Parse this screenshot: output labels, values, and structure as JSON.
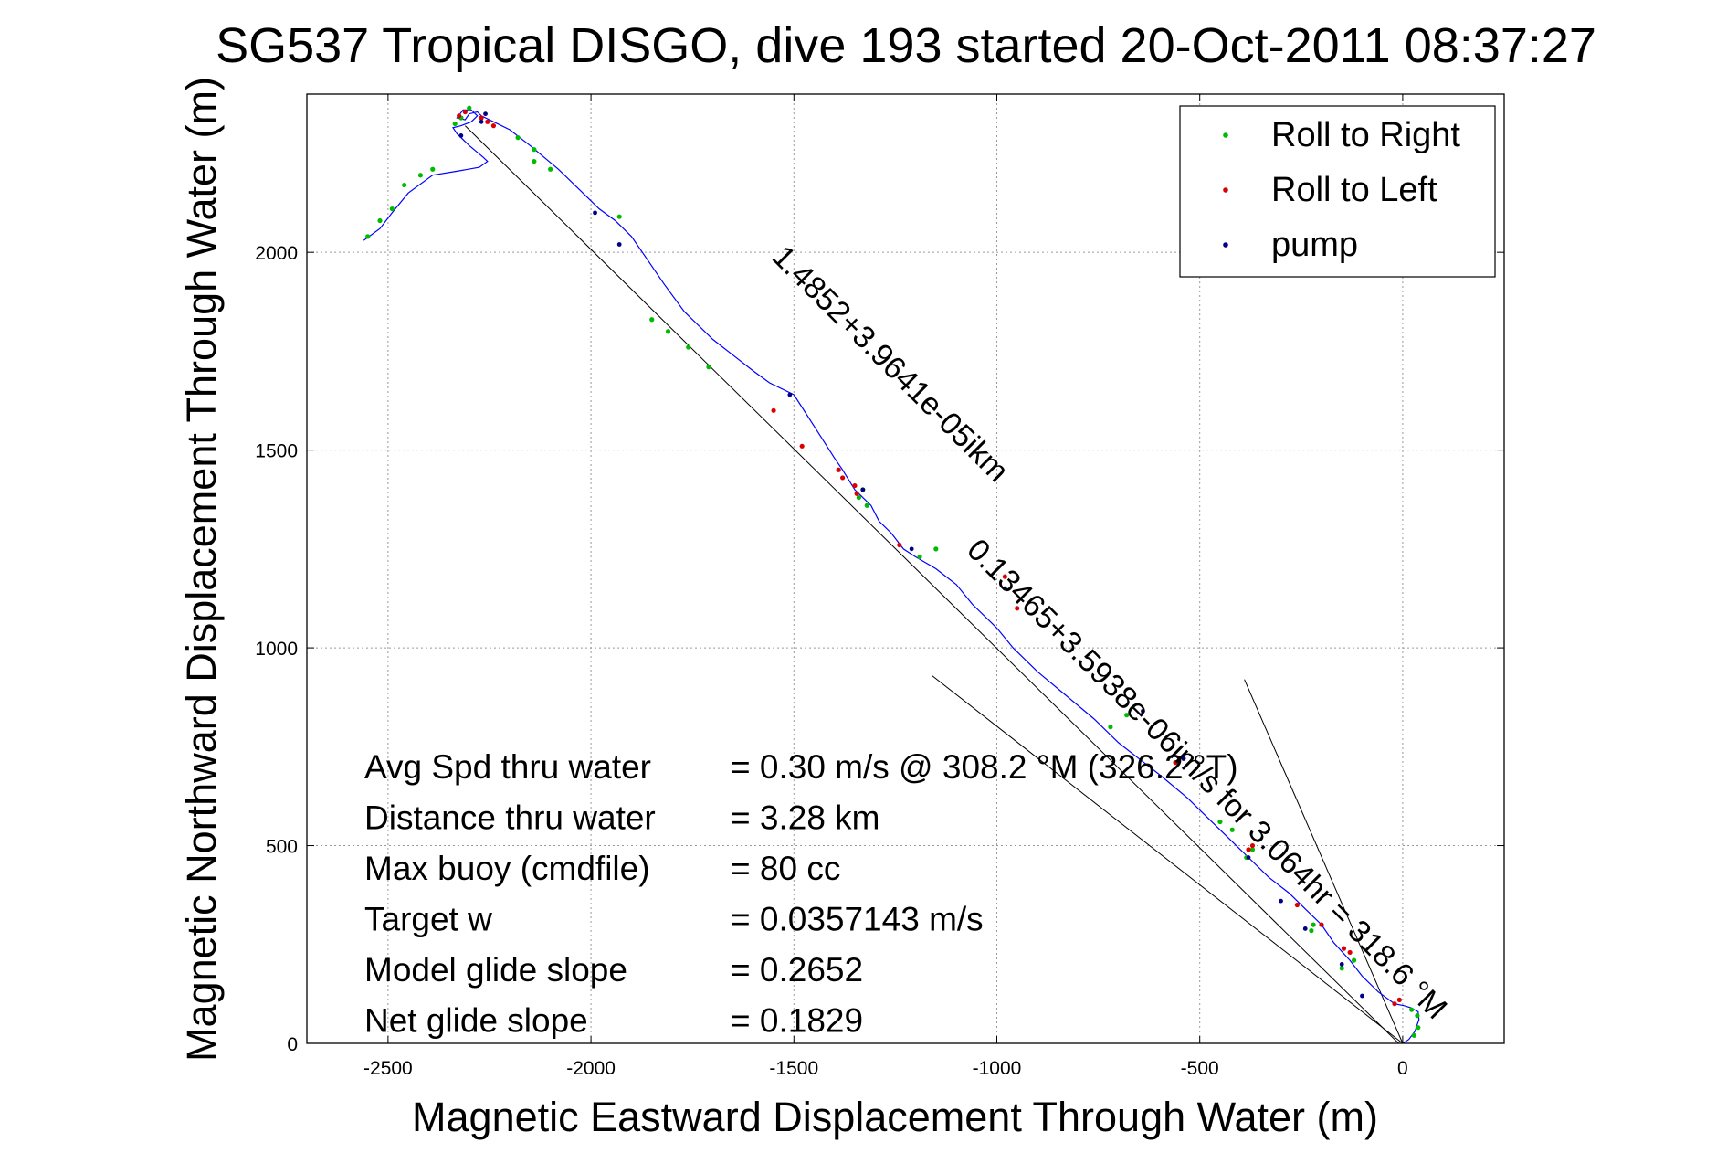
{
  "chart_data": {
    "type": "line",
    "title": "SG537 Tropical DISGO, dive 193 started 20-Oct-2011 08:37:27",
    "xlabel": "Magnetic Eastward Displacement Through Water (m)",
    "ylabel": "Magnetic Northward Displacement Through Water (m)",
    "xlim": [
      -2700,
      250
    ],
    "ylim": [
      0,
      2400
    ],
    "grid": true,
    "xticks": [
      -2500,
      -2000,
      -1500,
      -1000,
      -500,
      0
    ],
    "yticks": [
      0,
      500,
      1000,
      1500,
      2000
    ],
    "legend_position": "top-right",
    "legend": [
      {
        "label": "Roll to Right",
        "color": "#00bb00"
      },
      {
        "label": "Roll to Left",
        "color": "#dd0000"
      },
      {
        "label": "pump",
        "color": "#000088"
      }
    ],
    "track": {
      "color": "#0000ff",
      "x": [
        0,
        15,
        30,
        40,
        38,
        20,
        5,
        -20,
        -60,
        -100,
        -130,
        -170,
        -200,
        -240,
        -280,
        -330,
        -380,
        -420,
        -470,
        -530,
        -600,
        -650,
        -700,
        -760,
        -830,
        -900,
        -960,
        -1000,
        -1060,
        -1100,
        -1150,
        -1200,
        -1230,
        -1260,
        -1290,
        -1310,
        -1330,
        -1350,
        -1380,
        -1400,
        -1450,
        -1500,
        -1560,
        -1600,
        -1650,
        -1700,
        -1770,
        -1820,
        -1860,
        -1900,
        -1940,
        -1980,
        -2020,
        -2080,
        -2150,
        -2200,
        -2240,
        -2270,
        -2280,
        -2300,
        -2310,
        -2330,
        -2315,
        -2295,
        -2280,
        -2295,
        -2320,
        -2340,
        -2330,
        -2300,
        -2265,
        -2255,
        -2275,
        -2330,
        -2390,
        -2450,
        -2490,
        -2520,
        -2560
      ],
      "y": [
        0,
        10,
        30,
        60,
        80,
        90,
        95,
        100,
        130,
        170,
        210,
        255,
        300,
        340,
        380,
        420,
        470,
        510,
        560,
        620,
        680,
        720,
        760,
        820,
        880,
        940,
        1000,
        1050,
        1110,
        1160,
        1200,
        1230,
        1250,
        1290,
        1320,
        1360,
        1380,
        1400,
        1450,
        1480,
        1560,
        1640,
        1670,
        1700,
        1740,
        1780,
        1850,
        1920,
        1980,
        2040,
        2080,
        2110,
        2150,
        2210,
        2270,
        2310,
        2330,
        2345,
        2355,
        2350,
        2335,
        2340,
        2360,
        2360,
        2345,
        2330,
        2320,
        2315,
        2300,
        2270,
        2240,
        2230,
        2215,
        2205,
        2195,
        2150,
        2100,
        2060,
        2030
      ]
    },
    "roll_right": {
      "x": [
        28,
        38,
        36,
        22,
        -150,
        -120,
        -220,
        -225,
        -385,
        -370,
        -450,
        -420,
        -720,
        -680,
        -1190,
        -1150,
        -1330,
        -1340,
        -1320,
        -1710,
        -1760,
        -1810,
        -1850,
        -2180,
        -2140,
        -2390,
        -2420,
        -2460,
        -2490,
        -2520,
        -2550,
        -2300,
        -2320,
        -2335,
        -2140,
        -2100,
        -1930
      ],
      "y": [
        20,
        40,
        70,
        85,
        190,
        210,
        300,
        285,
        470,
        490,
        560,
        540,
        800,
        830,
        1230,
        1250,
        1400,
        1380,
        1360,
        1710,
        1760,
        1800,
        1830,
        2290,
        2260,
        2210,
        2195,
        2170,
        2110,
        2080,
        2040,
        2365,
        2340,
        2325,
        2230,
        2210,
        2090
      ]
    },
    "roll_left": {
      "x": [
        -8,
        -20,
        -130,
        -145,
        -200,
        -260,
        -370,
        -380,
        -540,
        -560,
        -950,
        -980,
        -1240,
        -1380,
        -1390,
        -1350,
        -1345,
        -2270,
        -2255,
        -2240,
        -2310,
        -2325,
        -1550,
        -1480
      ],
      "y": [
        110,
        100,
        230,
        240,
        300,
        350,
        500,
        490,
        720,
        710,
        1100,
        1180,
        1260,
        1430,
        1450,
        1410,
        1390,
        2340,
        2330,
        2320,
        2355,
        2345,
        1600,
        1510
      ]
    },
    "pump": {
      "x": [
        -100,
        -150,
        -240,
        -300,
        -380,
        -540,
        -640,
        -980,
        -1210,
        -1330,
        -1510,
        -1930,
        -1990,
        -2270,
        -2320,
        -2260
      ],
      "y": [
        120,
        200,
        290,
        360,
        470,
        720,
        840,
        1150,
        1250,
        1400,
        1640,
        2020,
        2100,
        2330,
        2295,
        2350
      ]
    },
    "vector_lines": [
      {
        "x": [
          0,
          -390
        ],
        "y": [
          0,
          920
        ]
      },
      {
        "x": [
          0,
          -1160
        ],
        "y": [
          0,
          930
        ]
      },
      {
        "x": [
          -10,
          -2310
        ],
        "y": [
          0,
          2320
        ]
      }
    ],
    "annotation": {
      "text": "1.4852+3.9641e-05ikm",
      "x": -1280,
      "y": 1700,
      "rotation_deg": 45
    },
    "annotation2": {
      "text": "0.13465+3.5938e-06im/s for 3.064hr = 318.6 °M",
      "x": -500,
      "y": 650,
      "rotation_deg": 45
    },
    "stats": [
      {
        "label": "Avg Spd thru water",
        "value": "=  0.30 m/s @ 308.2 °M (326.2 °T)"
      },
      {
        "label": "Distance thru water",
        "value": "=  3.28 km"
      },
      {
        "label": "Max buoy (cmdfile)",
        "value": "= 80 cc"
      },
      {
        "label": "Target w",
        "value": "= 0.0357143 m/s"
      },
      {
        "label": "Model glide slope",
        "value": "= 0.2652"
      },
      {
        "label": "Net glide slope",
        "value": "= 0.1829"
      }
    ]
  }
}
